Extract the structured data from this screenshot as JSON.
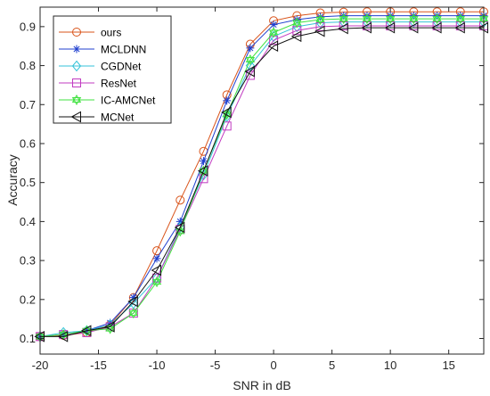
{
  "chart_data": {
    "type": "line",
    "title": "",
    "xlabel": "SNR in dB",
    "ylabel": "Accuracy",
    "xlim": [
      -20,
      18
    ],
    "ylim": [
      0.06,
      0.95
    ],
    "xticks": [
      -20,
      -15,
      -10,
      -5,
      0,
      5,
      10,
      15
    ],
    "yticks": [
      0.1,
      0.2,
      0.3,
      0.4,
      0.5,
      0.6,
      0.7,
      0.8,
      0.9
    ],
    "grid": false,
    "legend_position": "top-left",
    "x": [
      -20,
      -18,
      -16,
      -14,
      -12,
      -10,
      -8,
      -6,
      -4,
      -2,
      0,
      2,
      4,
      6,
      8,
      10,
      12,
      14,
      16,
      18
    ],
    "series": [
      {
        "name": "ours",
        "color": "#d95319",
        "marker": "circle",
        "values": [
          0.105,
          0.108,
          0.115,
          0.135,
          0.205,
          0.325,
          0.455,
          0.58,
          0.725,
          0.855,
          0.915,
          0.928,
          0.935,
          0.937,
          0.938,
          0.938,
          0.938,
          0.938,
          0.938,
          0.938
        ]
      },
      {
        "name": "MCLDNN",
        "color": "#1f3fcf",
        "marker": "asterisk",
        "values": [
          0.105,
          0.11,
          0.12,
          0.14,
          0.205,
          0.305,
          0.4,
          0.555,
          0.71,
          0.845,
          0.905,
          0.918,
          0.925,
          0.928,
          0.928,
          0.928,
          0.928,
          0.928,
          0.928,
          0.928
        ]
      },
      {
        "name": "CGDNet",
        "color": "#35c3d8",
        "marker": "diamond",
        "values": [
          0.105,
          0.115,
          0.12,
          0.135,
          0.19,
          0.255,
          0.385,
          0.52,
          0.67,
          0.8,
          0.875,
          0.9,
          0.91,
          0.912,
          0.912,
          0.912,
          0.912,
          0.912,
          0.912,
          0.912
        ]
      },
      {
        "name": "ResNet",
        "color": "#c13bc1",
        "marker": "square",
        "values": [
          0.105,
          0.11,
          0.115,
          0.13,
          0.165,
          0.255,
          0.38,
          0.51,
          0.645,
          0.775,
          0.865,
          0.89,
          0.9,
          0.902,
          0.902,
          0.902,
          0.902,
          0.902,
          0.902,
          0.902
        ]
      },
      {
        "name": "IC-AMCNet",
        "color": "#3fe23f",
        "marker": "hexagram",
        "values": [
          0.105,
          0.11,
          0.12,
          0.125,
          0.165,
          0.245,
          0.375,
          0.53,
          0.675,
          0.815,
          0.885,
          0.91,
          0.918,
          0.92,
          0.92,
          0.92,
          0.92,
          0.92,
          0.92,
          0.92
        ]
      },
      {
        "name": "MCNet",
        "color": "#111111",
        "marker": "triangle-left",
        "values": [
          0.105,
          0.105,
          0.12,
          0.13,
          0.195,
          0.275,
          0.385,
          0.53,
          0.68,
          0.785,
          0.85,
          0.875,
          0.888,
          0.895,
          0.897,
          0.897,
          0.897,
          0.897,
          0.897,
          0.897
        ]
      }
    ]
  }
}
